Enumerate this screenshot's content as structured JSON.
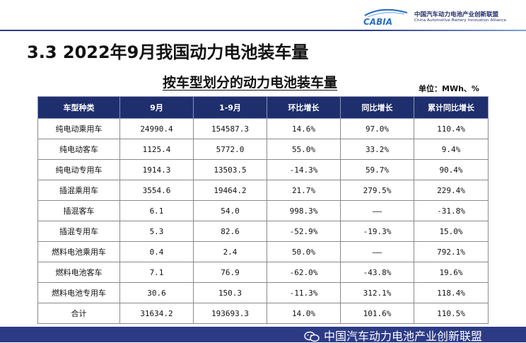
{
  "header": {
    "logo_cn": "中国汽车动力电池产业创新联盟",
    "logo_en": "China Automotive Battery Innovation Alliance",
    "logo_mark_text": "CABIA"
  },
  "page_title": "3.3 2022年9月我国动力电池装车量",
  "table_title": "按车型划分的动力电池装车量",
  "unit": "单位：MWh、%",
  "columns": [
    "车型种类",
    "9月",
    "1-9月",
    "环比增长",
    "同比增长",
    "累计同比增长"
  ],
  "rows": [
    [
      "纯电动乘用车",
      "24990.4",
      "154587.3",
      "14.6%",
      "97.0%",
      "110.4%"
    ],
    [
      "纯电动客车",
      "1125.4",
      "5772.0",
      "55.0%",
      "33.2%",
      "9.4%"
    ],
    [
      "纯电动专用车",
      "1914.3",
      "13503.5",
      "-14.3%",
      "59.7%",
      "90.4%"
    ],
    [
      "插混乘用车",
      "3554.6",
      "19464.2",
      "21.7%",
      "279.5%",
      "229.4%"
    ],
    [
      "插混客车",
      "6.1",
      "54.0",
      "998.3%",
      "——",
      "-31.8%"
    ],
    [
      "插混专用车",
      "5.3",
      "82.6",
      "-52.9%",
      "-19.3%",
      "15.0%"
    ],
    [
      "燃料电池乘用车",
      "0.4",
      "2.4",
      "50.0%",
      "——",
      "792.1%"
    ],
    [
      "燃料电池客车",
      "7.1",
      "76.9",
      "-62.0%",
      "-43.8%",
      "19.6%"
    ],
    [
      "燃料电池专用车",
      "30.6",
      "150.3",
      "-11.3%",
      "312.1%",
      "118.4%"
    ],
    [
      "合计",
      "31634.2",
      "193693.3",
      "14.0%",
      "101.6%",
      "110.5%"
    ]
  ],
  "footer": {
    "text": "中国汽车动力电池产业创新联盟",
    "icon": "wechat-icon"
  },
  "colors": {
    "header_bg": "#1f2f6d",
    "brand_blue": "#2d3b86"
  }
}
